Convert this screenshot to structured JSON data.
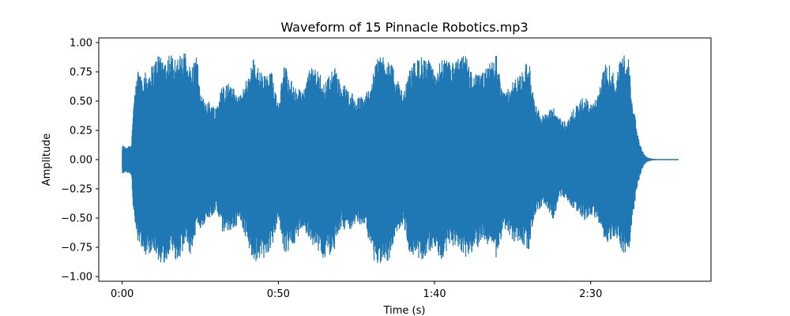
{
  "chart_data": {
    "type": "line",
    "title": "Waveform of 15 Pinnacle Robotics.mp3",
    "xlabel": "Time (s)",
    "ylabel": "Amplitude",
    "xlim": [
      -7.5,
      188.5
    ],
    "ylim": [
      -1.04,
      1.04
    ],
    "x_ticks": [
      {
        "value": 0,
        "label": "0:00"
      },
      {
        "value": 50,
        "label": "0:50"
      },
      {
        "value": 100,
        "label": "1:40"
      },
      {
        "value": 150,
        "label": "2:30"
      }
    ],
    "y_ticks": [
      {
        "value": 1.0,
        "label": "1.00"
      },
      {
        "value": 0.75,
        "label": "0.75"
      },
      {
        "value": 0.5,
        "label": "0.50"
      },
      {
        "value": 0.25,
        "label": "0.25"
      },
      {
        "value": 0.0,
        "label": "0.00"
      },
      {
        "value": -0.25,
        "label": "−0.25"
      },
      {
        "value": -0.5,
        "label": "−0.50"
      },
      {
        "value": -0.75,
        "label": "−0.75"
      },
      {
        "value": -1.0,
        "label": "−1.00"
      }
    ],
    "grid": false,
    "line_color": "#1f77b4",
    "envelope": {
      "t": [
        0,
        1,
        2,
        3,
        3.5,
        4,
        5,
        8,
        10,
        12,
        14,
        15,
        18,
        20,
        22,
        24,
        25,
        28,
        30,
        32,
        35,
        36,
        38,
        40,
        42,
        45,
        48,
        50,
        52,
        55,
        58,
        60,
        62,
        65,
        68,
        70,
        72,
        75,
        78,
        80,
        82,
        85,
        88,
        90,
        92,
        95,
        98,
        100,
        102,
        105,
        108,
        110,
        112,
        115,
        118,
        120,
        122,
        125,
        128,
        130,
        132,
        135,
        138,
        140,
        142,
        145,
        148,
        150,
        152,
        155,
        158,
        160,
        162,
        164,
        165,
        166,
        167,
        168,
        170,
        172,
        175,
        178
      ],
      "upper": [
        0.13,
        0.11,
        0.12,
        0.14,
        0.45,
        0.55,
        0.78,
        0.74,
        0.83,
        0.93,
        0.85,
        0.92,
        0.88,
        0.93,
        0.79,
        0.91,
        0.55,
        0.5,
        0.45,
        0.64,
        0.68,
        0.59,
        0.55,
        0.71,
        0.87,
        0.73,
        0.75,
        0.5,
        0.84,
        0.62,
        0.59,
        0.78,
        0.79,
        0.67,
        0.8,
        0.65,
        0.63,
        0.52,
        0.57,
        0.69,
        0.92,
        0.89,
        0.71,
        0.55,
        0.78,
        0.89,
        0.86,
        0.75,
        0.86,
        0.84,
        0.87,
        0.91,
        0.74,
        0.73,
        0.84,
        0.91,
        0.57,
        0.67,
        0.75,
        0.9,
        0.48,
        0.38,
        0.45,
        0.37,
        0.33,
        0.45,
        0.55,
        0.48,
        0.52,
        0.88,
        0.7,
        0.94,
        0.88,
        0.4,
        0.22,
        0.12,
        0.05,
        0.02,
        0.005,
        0.003,
        0.002,
        0.002
      ],
      "lower": [
        -0.13,
        -0.11,
        -0.12,
        -0.14,
        -0.45,
        -0.55,
        -0.69,
        -0.84,
        -0.77,
        -0.94,
        -0.86,
        -0.84,
        -0.87,
        -0.75,
        -0.83,
        -0.58,
        -0.59,
        -0.5,
        -0.45,
        -0.64,
        -0.6,
        -0.59,
        -0.54,
        -0.71,
        -0.9,
        -0.86,
        -0.75,
        -0.5,
        -0.84,
        -0.72,
        -0.59,
        -0.71,
        -0.75,
        -0.87,
        -0.77,
        -0.58,
        -0.63,
        -0.56,
        -0.57,
        -0.85,
        -0.89,
        -0.9,
        -0.62,
        -0.55,
        -0.8,
        -0.89,
        -0.8,
        -0.75,
        -0.86,
        -0.75,
        -0.77,
        -0.84,
        -0.79,
        -0.73,
        -0.72,
        -0.87,
        -0.57,
        -0.7,
        -0.72,
        -0.8,
        -0.48,
        -0.38,
        -0.52,
        -0.32,
        -0.33,
        -0.44,
        -0.52,
        -0.48,
        -0.52,
        -0.72,
        -0.65,
        -0.82,
        -0.84,
        -0.4,
        -0.22,
        -0.12,
        -0.05,
        -0.02,
        -0.005,
        -0.003,
        -0.002,
        -0.002
      ]
    }
  }
}
